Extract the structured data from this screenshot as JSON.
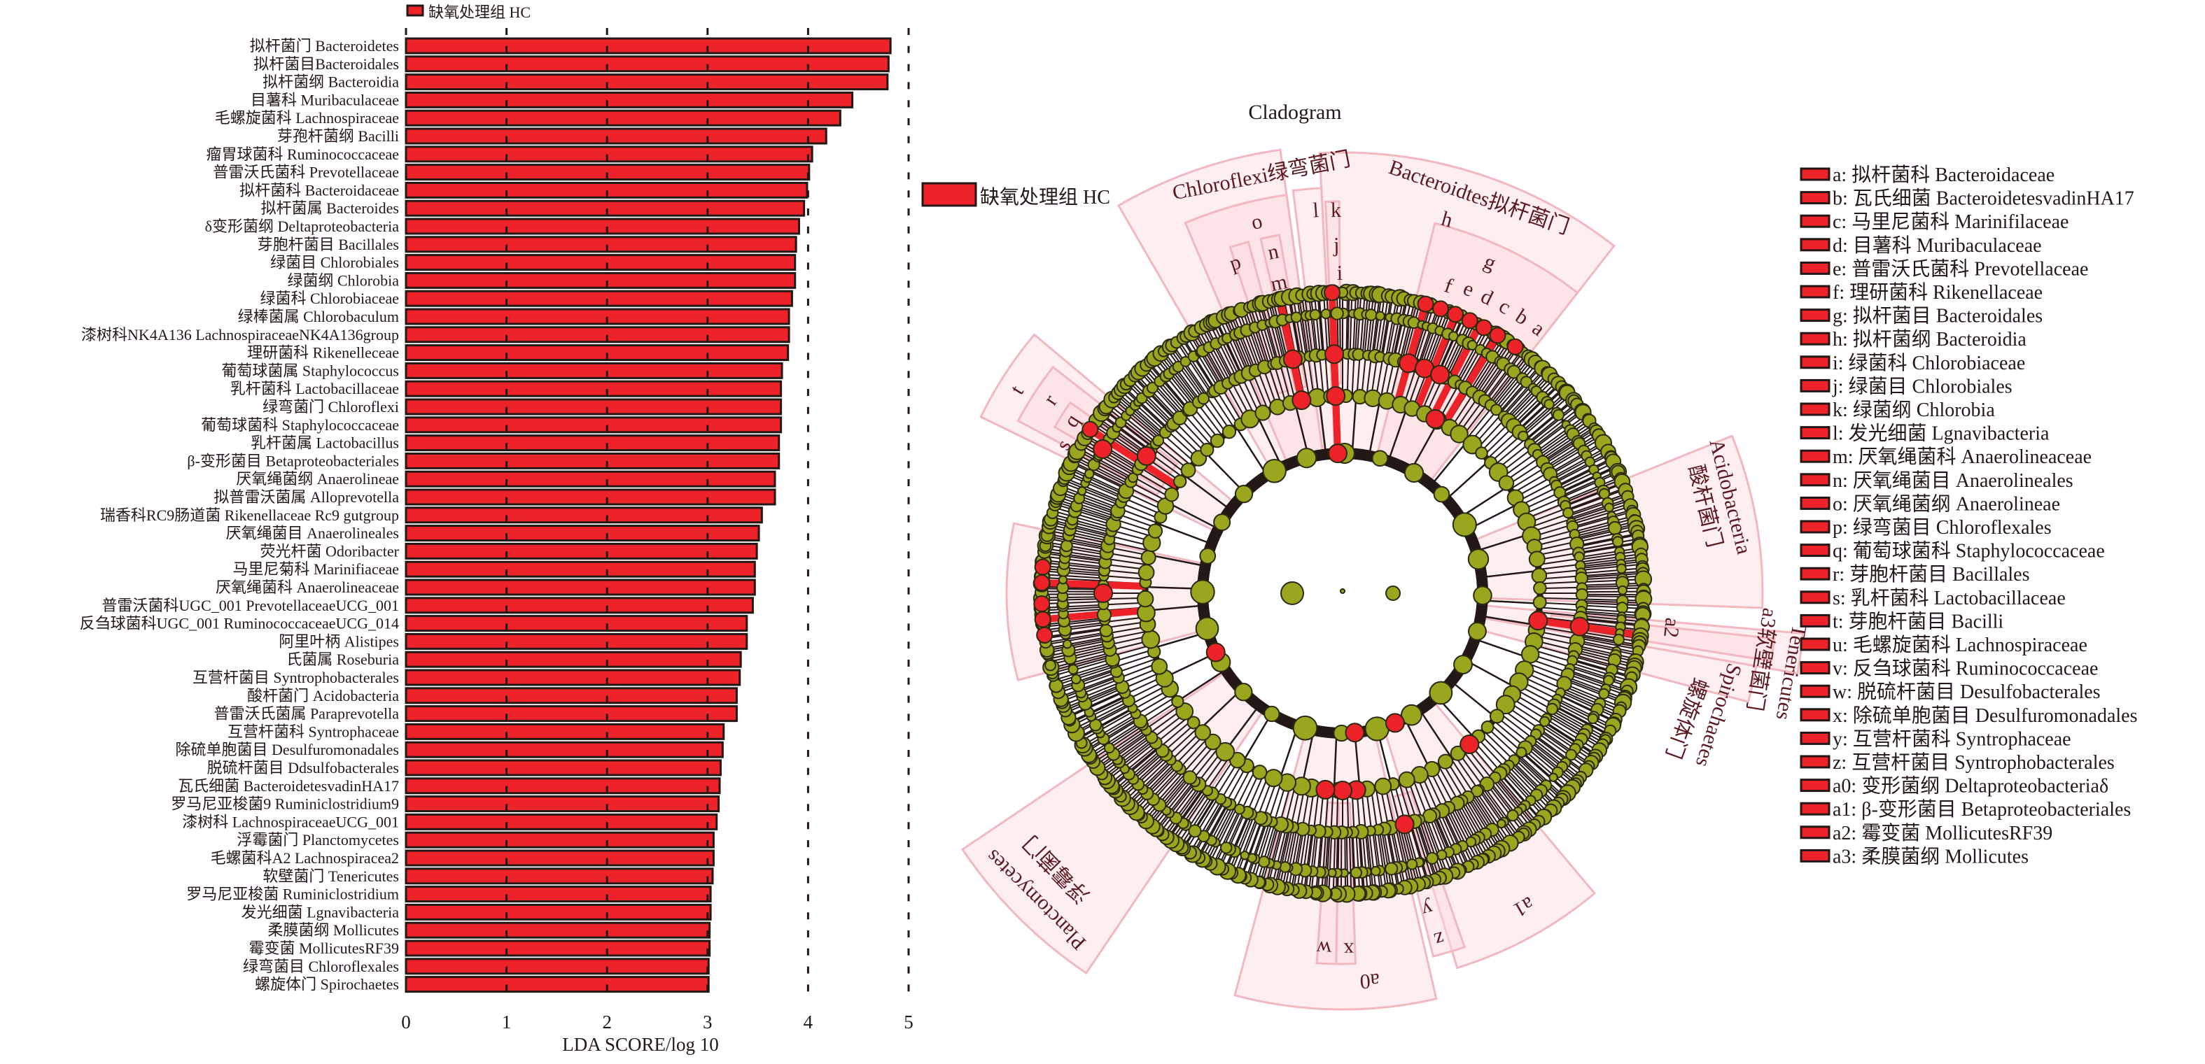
{
  "chart_data": [
    {
      "type": "bar",
      "orientation": "horizontal",
      "legend": {
        "label": "缺氧处理组 HC",
        "color": "#ee2229",
        "placement": "top"
      },
      "categories": [
        "拟杆菌门 Bacteroidetes",
        "拟杆菌目Bacteroidales",
        "拟杆菌纲 Bacteroidia",
        "目薯科 Muribaculaceae",
        "毛螺旋菌科 Lachnospiraceae",
        "芽孢杆菌纲 Bacilli",
        "瘤胃球菌科 Ruminococcaceae",
        "普雷沃氏菌科 Prevotellaceae",
        "拟杆菌科 Bacteroidaceae",
        "拟杆菌属 Bacteroides",
        "δ变形菌纲 Deltaproteobacteria",
        "芽胞杆菌目 Bacillales",
        "绿菌目 Chlorobiales",
        "绿菌纲 Chlorobia",
        "绿菌科 Chlorobiaceae",
        "绿棒菌属 Chlorobaculum",
        "漆树科NK4A136 LachnospiraceaeNK4A136group",
        "理研菌科 Rikenelleceae",
        "葡萄球菌属 Staphylococcus",
        "乳杆菌科 Lactobacillaceae",
        "绿弯菌门 Chloroflexi",
        "葡萄球菌科 Staphylococcaceae",
        "乳杆菌属 Lactobacillus",
        "β-变形菌目 Betaproteobacteriales",
        "厌氧绳菌纲 Anaerolineae",
        "拟普雷沃菌属 Alloprevotella",
        "瑞香科RC9肠道菌 Rikenellaceae Rc9 gutgroup",
        "厌氧绳菌目 Anaerolineales",
        "荧光杆菌 Odoribacter",
        "马里尼菊科 Marinifiaceae",
        "厌氧绳菌科 Anaerolineaceae",
        "普雷沃菌科UGC_001 PrevotellaceaeUCG_001",
        "反刍球菌科UGC_001 RuminococcaceaeUCG_014",
        "阿里叶柄 Alistipes",
        "氏菌属 Roseburia",
        "互营杆菌目 Syntrophobacterales",
        "酸杆菌门 Acidobacteria",
        "普雷沃氏菌属 Paraprevotella",
        "互营杆菌科 Syntrophaceae",
        "除硫单胞菌目 Desulfuromonadales",
        "脱硫杆菌目 Ddsulfobacterales",
        "瓦氏细菌 BacteroidetesvadinHA17",
        "罗马尼亚梭菌9 Ruminiclostridium9",
        "漆树科 LachnospiraceaeUCG_001",
        "浮霉菌门 Planctomycetes",
        "毛螺菌科A2 Lachnospiracea2",
        "软壁菌门 Tenericutes",
        "罗马尼亚梭菌 Ruminiclostridium",
        "发光细菌 Lgnavibacteria",
        "柔膜菌纲 Mollicutes",
        "霉变菌 MollicutesRF39",
        "绿弯菌目 Chloroflexales",
        "螺旋体门 Spirochaetes"
      ],
      "values": [
        4.82,
        4.8,
        4.79,
        4.44,
        4.32,
        4.18,
        4.04,
        4.01,
        3.99,
        3.96,
        3.91,
        3.88,
        3.87,
        3.87,
        3.84,
        3.81,
        3.81,
        3.8,
        3.74,
        3.73,
        3.73,
        3.73,
        3.71,
        3.71,
        3.67,
        3.67,
        3.54,
        3.51,
        3.49,
        3.47,
        3.47,
        3.45,
        3.39,
        3.39,
        3.33,
        3.32,
        3.29,
        3.29,
        3.16,
        3.15,
        3.13,
        3.12,
        3.11,
        3.09,
        3.06,
        3.06,
        3.05,
        3.03,
        3.03,
        3.02,
        3.02,
        3.01,
        3.01
      ],
      "xlabel": "LDA SCORE/log 10",
      "xlim": [
        0,
        5
      ],
      "xticks": [
        "0",
        "1",
        "2",
        "3",
        "4",
        "5"
      ],
      "grid": "dashed vertical at ticks"
    },
    {
      "type": "cladogram",
      "title": "Cladogram",
      "legend": {
        "label": "缺氧处理组 HC",
        "color": "#ee2229"
      },
      "node_colors": {
        "enriched": "#ee2229",
        "not_significant": "#9aa61e"
      },
      "clade_labels": [
        "Bacteroidtes拟杆菌门",
        "Chloroflexi绿弯菌门",
        "Acidobacteria",
        "酸杆菌门",
        "Tenericutes",
        "a3软壁菌门",
        "a2",
        "Spirochaetes",
        "螺旋体门",
        "Planctomycetes",
        "浮霉菌门",
        "a",
        "b",
        "c",
        "d",
        "e",
        "f",
        "g",
        "h",
        "i",
        "j",
        "k",
        "l",
        "m",
        "n",
        "o",
        "p",
        "q",
        "r",
        "s",
        "t",
        "w",
        "x",
        "y",
        "z",
        "a0",
        "a1"
      ],
      "key": [
        "a: 拟杆菌科 Bacteroidaceae",
        "b: 瓦氏细菌 BacteroidetesvadinHA17",
        "c: 马里尼菌科 Marinifilaceae",
        "d: 目薯科 Muribaculaceae",
        "e: 普雷沃氏菌科 Prevotellaceae",
        "f: 理研菌科 Rikenellaceae",
        "g: 拟杆菌目 Bacteroidales",
        "h: 拟杆菌纲 Bacteroidia",
        "i: 绿菌科 Chlorobiaceae",
        "j: 绿菌目 Chlorobiales",
        "k: 绿菌纲 Chlorobia",
        "l: 发光细菌 Lgnavibacteria",
        "m: 厌氧绳菌科 Anaerolineaceae",
        "n: 厌氧绳菌目 Anaerolineales",
        "o: 厌氧绳菌纲 Anaerolineae",
        "p: 绿弯菌目 Chloroflexales",
        "q: 葡萄球菌科 Staphylococcaceae",
        "r: 芽胞杆菌目 Bacillales",
        "s: 乳杆菌科 Lactobacillaceae",
        "t: 芽胞杆菌目 Bacilli",
        "u: 毛螺旋菌科 Lachnospiraceae",
        "v: 反刍球菌科 Ruminococcaceae",
        "w: 脱硫杆菌目 Desulfobacterales",
        "x: 除硫单胞菌目 Desulfuromonadales",
        "y: 互营杆菌科 Syntrophaceae",
        "z: 互营杆菌目 Syntrophobacterales",
        "a0: 变形菌纲 Deltaproteobacteriaδ",
        "a1: β-变形菌目 Betaproteobacteriales",
        "a2: 霉变菌 MollicutesRF39",
        "a3: 柔膜菌纲 Mollicutes"
      ]
    }
  ]
}
